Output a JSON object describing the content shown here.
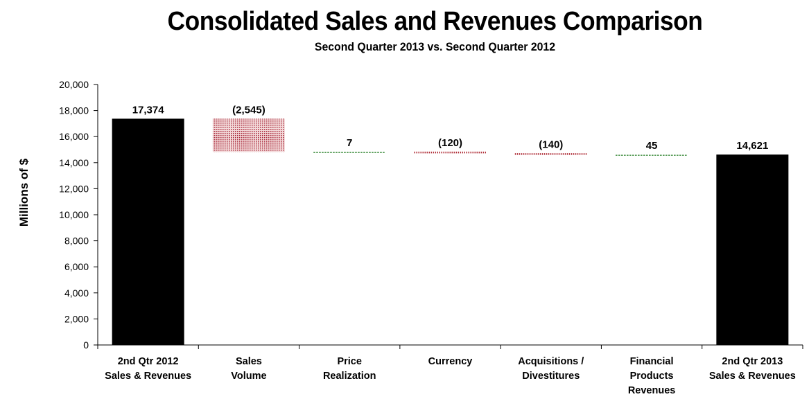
{
  "chart_data": {
    "type": "bar",
    "subtype": "waterfall",
    "title": "Consolidated Sales and Revenues Comparison",
    "subtitle": "Second Quarter 2013 vs. Second Quarter 2012",
    "xlabel": "",
    "ylabel": "Millions of $",
    "ylim": [
      0,
      20000
    ],
    "yticks": [
      0,
      2000,
      4000,
      6000,
      8000,
      10000,
      12000,
      14000,
      16000,
      18000,
      20000
    ],
    "ytick_labels": [
      "0",
      "2,000",
      "4,000",
      "6,000",
      "8,000",
      "10,000",
      "12,000",
      "14,000",
      "16,000",
      "18,000",
      "20,000"
    ],
    "grid": false,
    "categories": [
      [
        "2nd Qtr 2012",
        "Sales & Revenues"
      ],
      [
        "Sales",
        "Volume"
      ],
      [
        "Price",
        "Realization"
      ],
      [
        "Currency"
      ],
      [
        "Acquisitions /",
        "Divestitures"
      ],
      [
        "Financial",
        "Products",
        "Revenues"
      ],
      [
        "2nd Qtr 2013",
        "Sales & Revenues"
      ]
    ],
    "bars": [
      {
        "kind": "total",
        "value": 17374,
        "label": "17,374"
      },
      {
        "kind": "decrease",
        "value": -2545,
        "label": "(2,545)"
      },
      {
        "kind": "increase",
        "value": 7,
        "label": "7"
      },
      {
        "kind": "decrease",
        "value": -120,
        "label": "(120)"
      },
      {
        "kind": "decrease",
        "value": -140,
        "label": "(140)"
      },
      {
        "kind": "increase",
        "value": 45,
        "label": "45"
      },
      {
        "kind": "total",
        "value": 14621,
        "label": "14,621"
      }
    ],
    "colors": {
      "total": "#000000",
      "decrease": "#b0303a",
      "increase": "#1e7a1e"
    }
  }
}
